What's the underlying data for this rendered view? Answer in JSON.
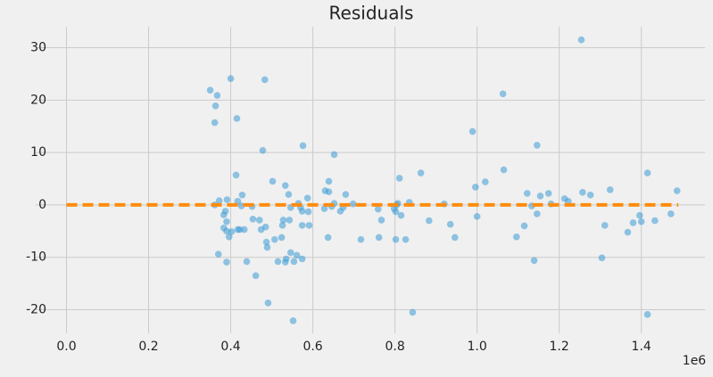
{
  "chart_data": {
    "type": "scatter",
    "title": "Residuals",
    "x_offset_label": "1e6",
    "xlim": [
      -0.075,
      1.555
    ],
    "xticks": [
      {
        "value": 0,
        "label": "0.0"
      },
      0.2,
      0.4,
      0.6,
      0.8,
      {
        "value": 1,
        "label": "1.0"
      },
      1.2,
      1.4
    ],
    "ylim": [
      -24.5,
      34
    ],
    "yticks": [
      -20,
      -10,
      0,
      10,
      20,
      30
    ],
    "grid": true,
    "series": [
      {
        "color": "#3a9bd5",
        "x": [
          0.35,
          0.367,
          0.363,
          0.361,
          0.4,
          0.415,
          0.483,
          0.478,
          0.576,
          0.652,
          1.254,
          1.063,
          0.989,
          1.146,
          1.065,
          0.413,
          0.502,
          0.533,
          0.541,
          0.428,
          0.391,
          0.372,
          0.361,
          0.417,
          0.426,
          0.452,
          0.387,
          0.383,
          0.39,
          0.383,
          0.39,
          0.402,
          0.396,
          0.417,
          0.422,
          0.433,
          0.454,
          0.47,
          0.485,
          0.474,
          0.487,
          0.489,
          0.507,
          0.524,
          0.526,
          0.528,
          0.543,
          0.546,
          0.565,
          0.57,
          0.574,
          0.587,
          0.589,
          0.574,
          0.591,
          0.546,
          0.561,
          0.535,
          0.533,
          0.515,
          0.554,
          0.574,
          0.37,
          0.39,
          0.439,
          0.461,
          0.491,
          0.552,
          0.63,
          0.639,
          0.639,
          0.628,
          0.637,
          0.646,
          0.652,
          0.667,
          0.674,
          0.68,
          0.698,
          0.717,
          0.759,
          0.761,
          0.767,
          0.798,
          0.802,
          0.802,
          0.804,
          0.807,
          0.811,
          0.815,
          0.826,
          0.835,
          0.843,
          0.863,
          0.883,
          0.92,
          0.935,
          0.946,
          0.996,
          1.0,
          1.02,
          1.096,
          1.115,
          1.122,
          1.133,
          1.139,
          1.146,
          1.154,
          1.174,
          1.18,
          1.213,
          1.222,
          1.257,
          1.276,
          1.304,
          1.311,
          1.324,
          1.38,
          1.396,
          1.4,
          1.367,
          1.415,
          1.415,
          1.433,
          1.472,
          1.487
        ],
        "values": [
          21.9,
          20.9,
          18.9,
          15.7,
          24.1,
          16.5,
          23.9,
          10.4,
          11.3,
          9.6,
          31.5,
          21.2,
          14.0,
          11.4,
          6.7,
          5.7,
          4.5,
          3.7,
          2.0,
          1.9,
          1.0,
          0.8,
          0,
          0.7,
          -0.2,
          -0.3,
          -1.2,
          -1.9,
          -3.2,
          -4.4,
          -5,
          -5.1,
          -6.1,
          -4.7,
          -4.7,
          -4.7,
          -2.7,
          -2.9,
          -4.2,
          -4.7,
          -7.1,
          -8.1,
          -6.6,
          -6.2,
          -3.9,
          -2.9,
          -2.9,
          -0.5,
          0.3,
          -0.5,
          -1.2,
          1.3,
          -1.3,
          -3.9,
          -3.9,
          -9.1,
          -9.6,
          -10.3,
          -10.9,
          -10.8,
          -10.8,
          -10.3,
          -9.4,
          -10.9,
          -10.8,
          -13.5,
          -18.7,
          -22.1,
          2.7,
          2.5,
          4.5,
          -0.7,
          -6.2,
          -0.3,
          0.3,
          -1.2,
          -0.5,
          2.0,
          0.2,
          -6.6,
          -0.8,
          -6.2,
          -2.9,
          -0.7,
          -6.6,
          -1.3,
          0,
          0.3,
          5.1,
          -2.0,
          -6.6,
          0.5,
          -20.5,
          6.1,
          -3.0,
          0.2,
          -3.7,
          -6.2,
          3.4,
          -2.2,
          4.4,
          -6.1,
          -4.0,
          2.2,
          -0.2,
          -10.6,
          -1.7,
          1.7,
          2.2,
          0.2,
          1.2,
          0.7,
          2.4,
          1.9,
          -10.1,
          -3.9,
          2.9,
          -3.4,
          -2.0,
          -3.2,
          -5.2,
          6.1,
          -20.9,
          -3.0,
          -1.7,
          2.7
        ]
      }
    ],
    "hline": {
      "x": [
        0,
        1.49
      ],
      "values": [
        0,
        0
      ],
      "color": "#ff8c0e"
    }
  }
}
